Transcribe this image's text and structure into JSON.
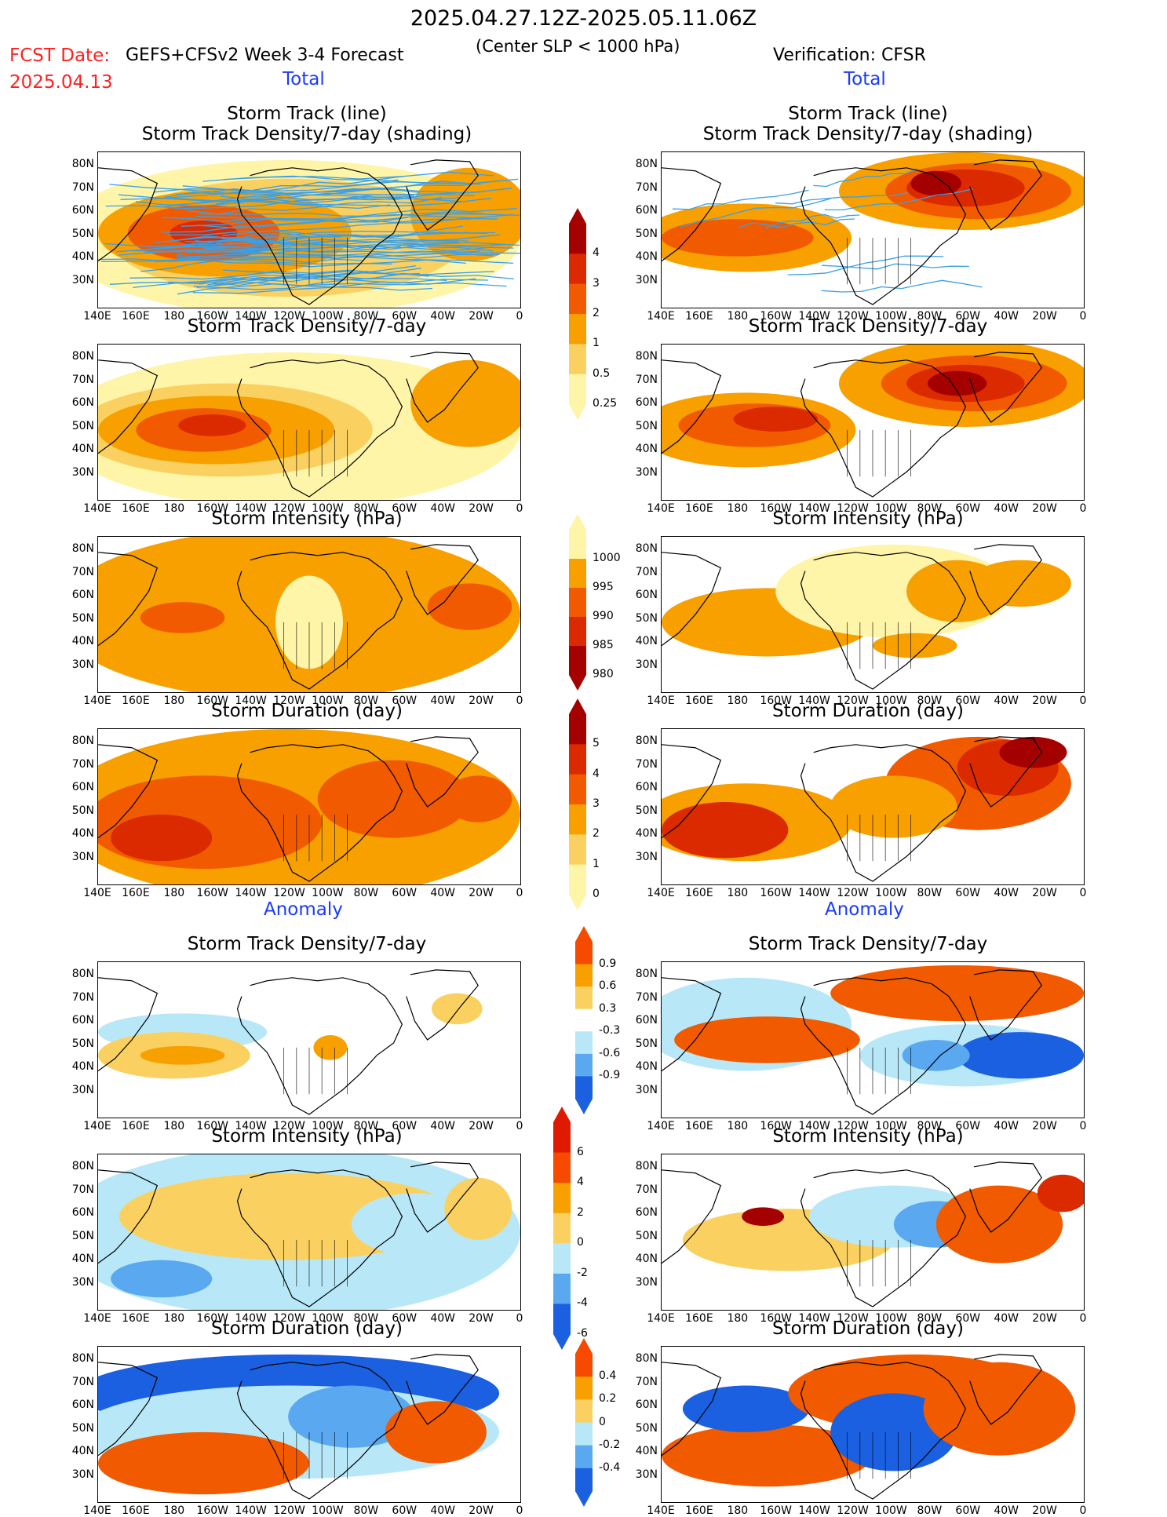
{
  "header": {
    "date_range": "2025.04.27.12Z-2025.05.11.06Z",
    "fcst_label": "FCST Date:",
    "fcst_date": "2025.04.13",
    "model_label": "GEFS+CFSv2 Week 3-4 Forecast",
    "criterion": "(Center SLP < 1000 hPa)",
    "verification": "Verification: CFSR"
  },
  "sections": {
    "total_left": "Total",
    "total_right": "Total",
    "anomaly_left": "Anomaly",
    "anomaly_right": "Anomaly"
  },
  "panel_titles": {
    "track_line": "Storm Track (line)",
    "track_density_shading": "Storm Track Density/7-day (shading)",
    "track_density": "Storm Track Density/7-day",
    "intensity": "Storm Intensity (hPa)",
    "duration": "Storm Duration (day)"
  },
  "axes": {
    "lat_labels": [
      "80N",
      "70N",
      "60N",
      "50N",
      "40N",
      "30N"
    ],
    "lon_labels": [
      "140E",
      "160E",
      "180",
      "160W",
      "140W",
      "120W",
      "100W",
      "80W",
      "60W",
      "40W",
      "20W",
      "0"
    ]
  },
  "colorbars": {
    "density": {
      "labels": [
        "4",
        "3",
        "2",
        "1",
        "0.5",
        "0.25"
      ],
      "colors": [
        "#a50000",
        "#dc2a00",
        "#f25a00",
        "#f7a000",
        "#fad060",
        "#fff5a8"
      ]
    },
    "intensity": {
      "labels": [
        "1000",
        "995",
        "990",
        "985",
        "980"
      ],
      "colors": [
        "#fff5a8",
        "#f7a000",
        "#f25a00",
        "#dc2a00",
        "#a50000"
      ]
    },
    "duration": {
      "labels": [
        "5",
        "4",
        "3",
        "2",
        "1",
        "0"
      ],
      "colors": [
        "#a50000",
        "#dc2a00",
        "#f25a00",
        "#f7a000",
        "#fad060",
        "#fff5a8"
      ]
    },
    "anom_density": {
      "labels": [
        "0.9",
        "0.6",
        "0.3",
        "-0.3",
        "-0.6",
        "-0.9"
      ],
      "colors": [
        "#f54a00",
        "#f7a000",
        "#fad060",
        "#ffffff",
        "#b8e8f8",
        "#5aa8f0",
        "#1a60e0"
      ]
    },
    "anom_intensity": {
      "labels": [
        "6",
        "4",
        "2",
        "0",
        "-2",
        "-4",
        "-6"
      ],
      "colors": [
        "#e01a00",
        "#f54a00",
        "#f7a000",
        "#fad060",
        "#b8e8f8",
        "#5aa8f0",
        "#1a60e0"
      ]
    },
    "anom_duration": {
      "labels": [
        "0.4",
        "0.2",
        "0",
        "-0.2",
        "-0.4"
      ],
      "colors": [
        "#f54a00",
        "#f7a000",
        "#fad060",
        "#b8e8f8",
        "#5aa8f0",
        "#1a60e0"
      ]
    }
  },
  "colors": {
    "track_lines": "#3aa0e8",
    "coastline": "#000000",
    "title_red": "#ff2020",
    "section_blue": "#1a3aff"
  }
}
